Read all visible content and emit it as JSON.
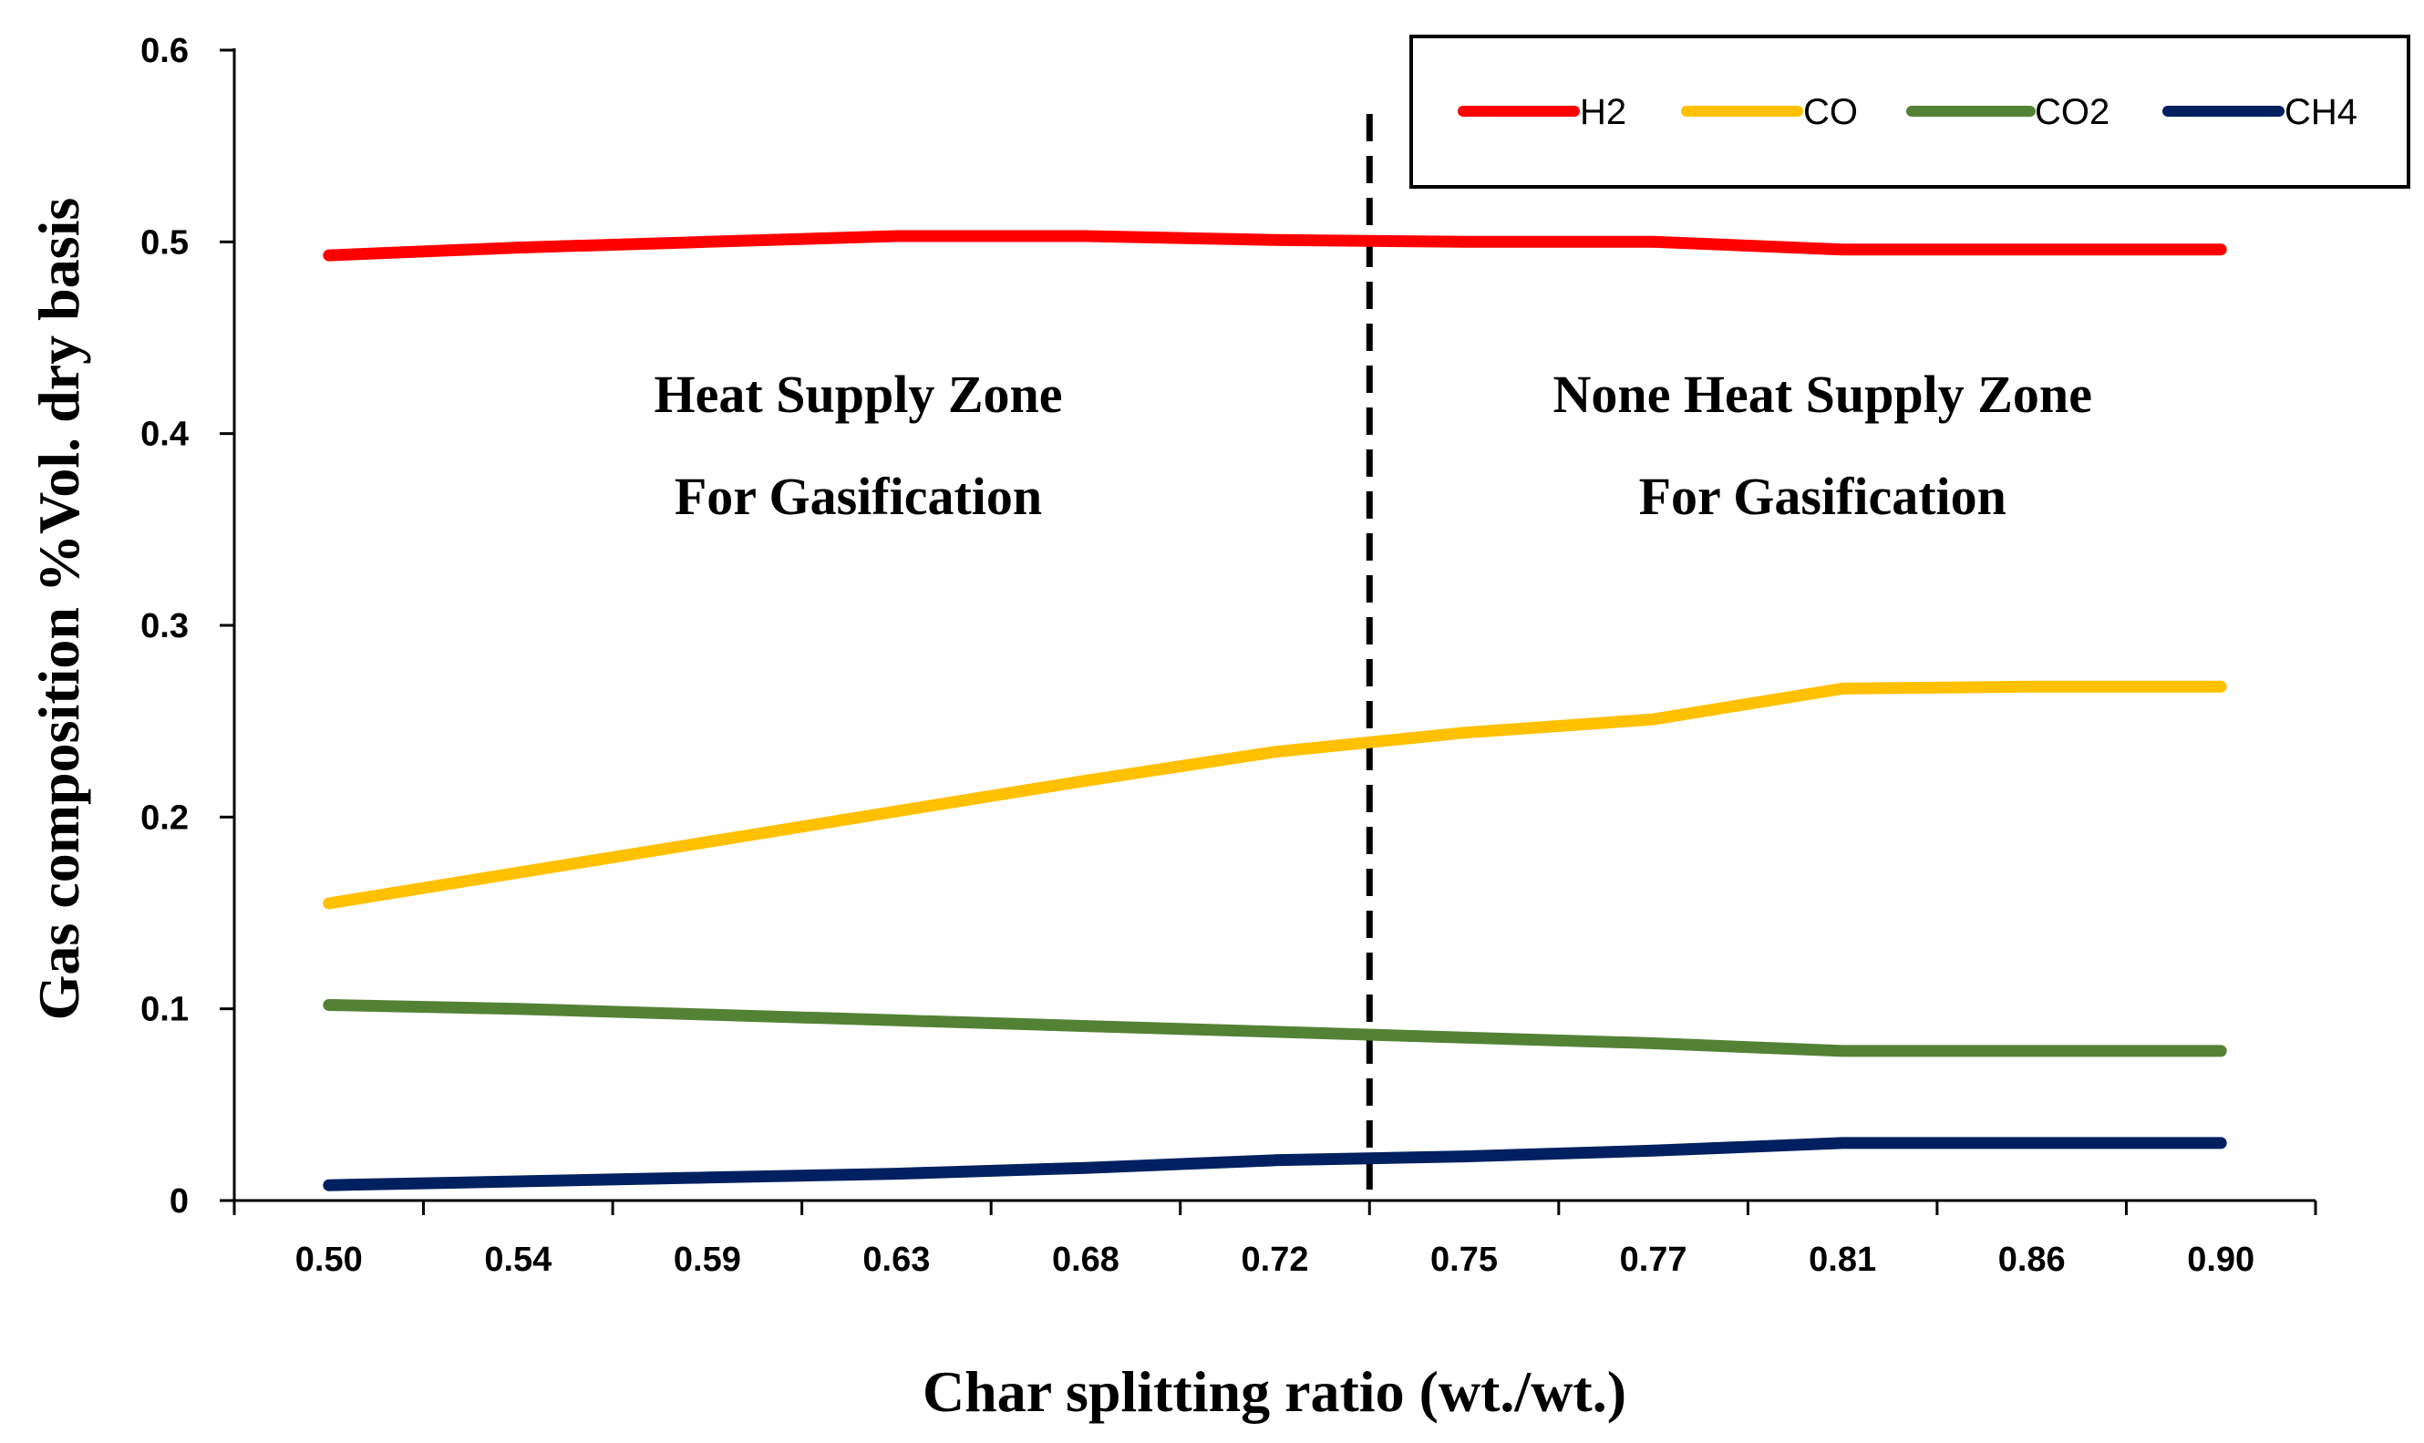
{
  "chart_data": {
    "type": "line",
    "title": "",
    "xlabel": "Char splitting ratio (wt./wt.)",
    "ylabel": "Gas composition %Vol. dry basis",
    "categories": [
      "0.50",
      "0.54",
      "0.59",
      "0.63",
      "0.68",
      "0.72",
      "0.75",
      "0.77",
      "0.81",
      "0.86",
      "0.90"
    ],
    "y_ticks": [
      "0",
      "0.1",
      "0.2",
      "0.3",
      "0.4",
      "0.5",
      "0.6"
    ],
    "ylim": [
      0,
      0.6
    ],
    "grid": false,
    "legend_position": "top-right",
    "series": [
      {
        "name": "H2",
        "color": "#ff0000",
        "values": [
          0.493,
          0.497,
          0.5,
          0.503,
          0.503,
          0.501,
          0.5,
          0.5,
          0.496,
          0.496,
          0.496
        ]
      },
      {
        "name": "CO",
        "color": "#ffc000",
        "values": [
          0.155,
          0.171,
          0.187,
          0.203,
          0.219,
          0.234,
          0.244,
          0.251,
          0.267,
          0.268,
          0.268
        ]
      },
      {
        "name": "CO2",
        "color": "#548235",
        "values": [
          0.102,
          0.1,
          0.097,
          0.094,
          0.091,
          0.088,
          0.085,
          0.082,
          0.078,
          0.078,
          0.078
        ]
      },
      {
        "name": "CH4",
        "color": "#002060",
        "values": [
          0.008,
          0.01,
          0.012,
          0.014,
          0.017,
          0.021,
          0.023,
          0.026,
          0.03,
          0.03,
          0.03
        ]
      }
    ],
    "divider": {
      "between_categories": [
        "0.72",
        "0.75"
      ],
      "style": "dashed"
    },
    "annotations": {
      "left_zone": [
        "Heat Supply Zone",
        "For Gasification"
      ],
      "right_zone": [
        "None Heat Supply Zone",
        "For Gasification"
      ]
    }
  }
}
